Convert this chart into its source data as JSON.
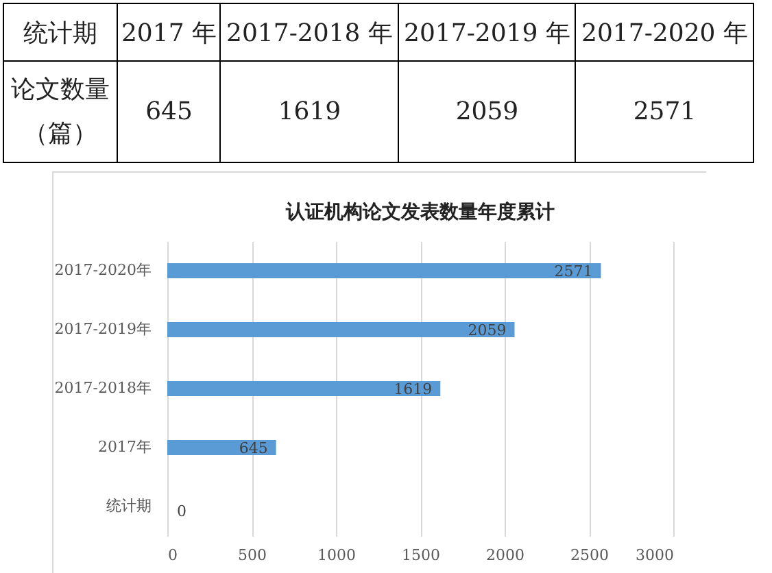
{
  "chart_data": {
    "type": "bar",
    "orientation": "horizontal",
    "title": "认证机构论文发表数量年度累计",
    "categories": [
      "2017-2020年",
      "2017-2019年",
      "2017-2018年",
      "2017年",
      "统计期"
    ],
    "values": [
      2571,
      2059,
      1619,
      645,
      0
    ],
    "color": "#5b9bd5",
    "xlim": [
      0,
      3000
    ],
    "xticks": [
      0,
      500,
      1000,
      1500,
      2000,
      2500,
      3000
    ],
    "grid": "x",
    "data_labels": true,
    "annotations": [
      "统计期",
      "2017 年",
      "2017-2018 年",
      "2017-2019 年",
      "2017-2020 年",
      "论文数量（篇）",
      "645",
      "1619",
      "2059",
      "2571"
    ]
  }
}
